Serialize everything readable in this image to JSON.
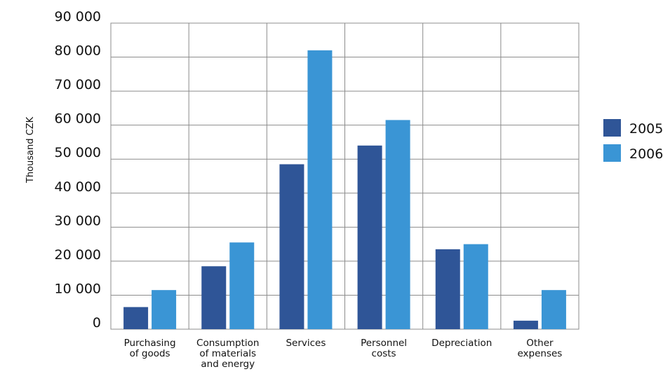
{
  "chart_data": {
    "type": "bar",
    "title": "",
    "xlabel": "",
    "ylabel": "Thousand CZK",
    "ylim": [
      0,
      90000
    ],
    "yticks": [
      0,
      10000,
      20000,
      30000,
      40000,
      50000,
      60000,
      70000,
      80000,
      90000
    ],
    "ytick_labels": [
      "0",
      "10 000",
      "20 000",
      "30 000",
      "40 000",
      "50 000",
      "60 000",
      "70 000",
      "80 000",
      "90 000"
    ],
    "grid": true,
    "legend_position": "right",
    "categories": [
      [
        "Purchasing",
        "of goods"
      ],
      [
        "Consumption",
        "of materials",
        "and energy"
      ],
      [
        "Services"
      ],
      [
        "Personnel",
        "costs"
      ],
      [
        "Depreciation"
      ],
      [
        "Other",
        "expenses"
      ]
    ],
    "series": [
      {
        "name": "2005",
        "color": "#2f5597",
        "values": [
          6500,
          18500,
          48500,
          54000,
          23500,
          2500
        ]
      },
      {
        "name": "2006",
        "color": "#3a95d5",
        "values": [
          11500,
          25500,
          82000,
          61500,
          25000,
          11500
        ]
      }
    ]
  }
}
